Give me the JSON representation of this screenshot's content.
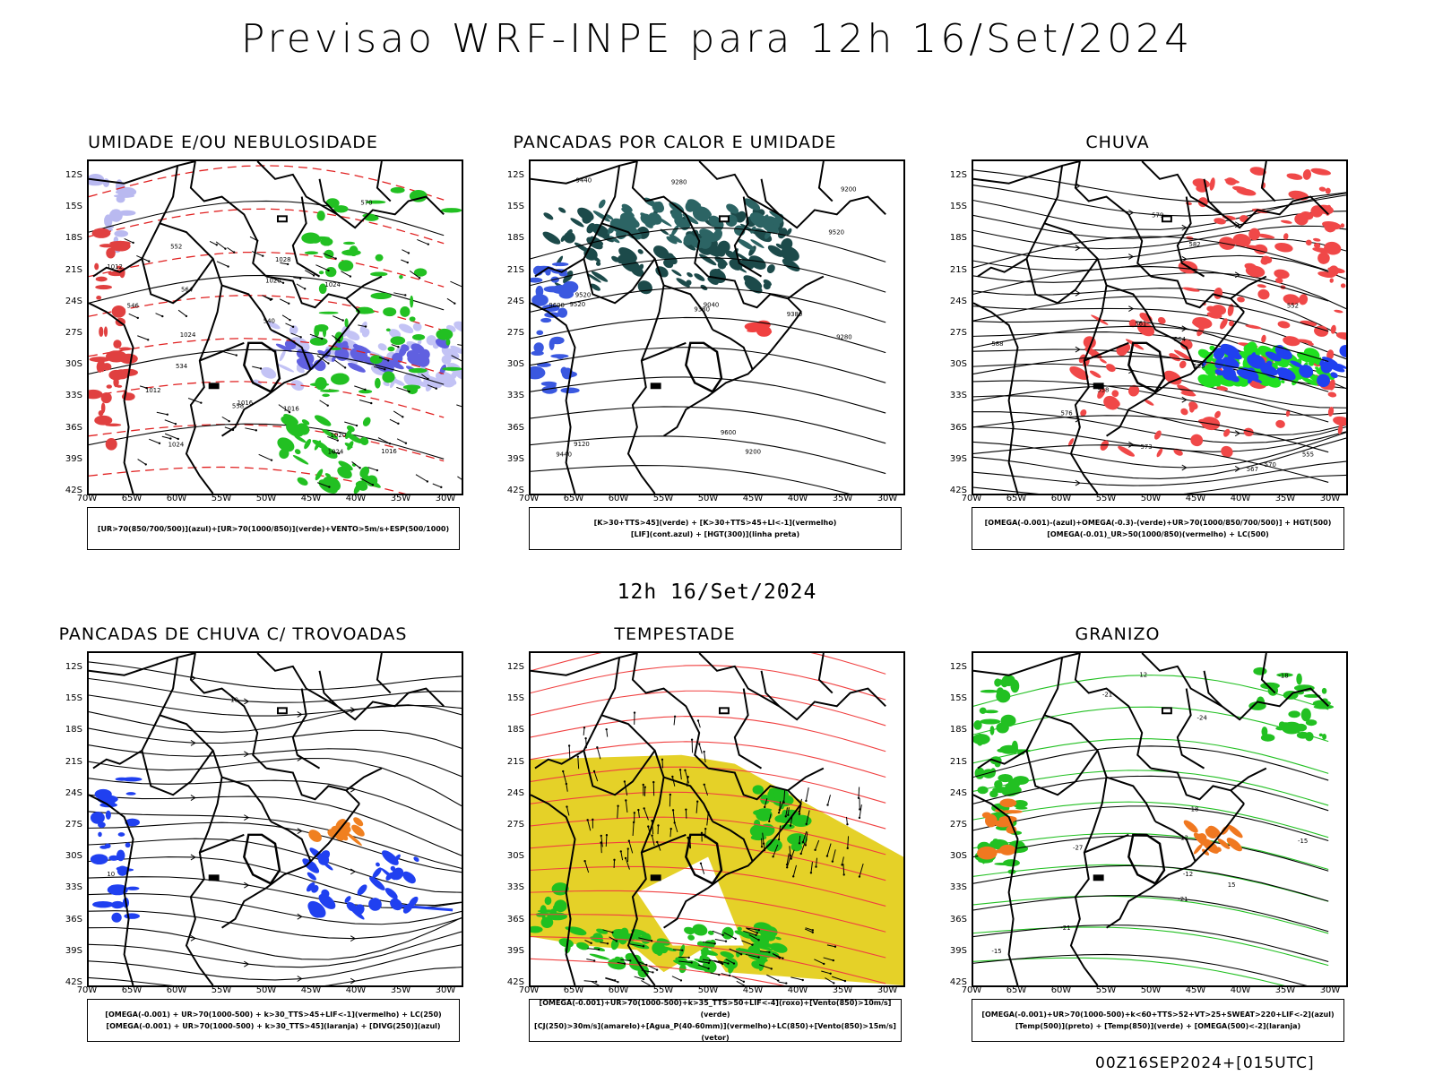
{
  "title": "Previsao WRF-INPE  para 12h 16/Set/2024",
  "subtitle": "12h 16/Set/2024",
  "footer": "00Z16SEP2024+[015UTC]",
  "axes": {
    "lat_ticks": [
      "12S",
      "15S",
      "18S",
      "21S",
      "24S",
      "27S",
      "30S",
      "33S",
      "36S",
      "39S",
      "42S"
    ],
    "lon_ticks": [
      "70W",
      "65W",
      "60W",
      "55W",
      "50W",
      "45W",
      "40W",
      "35W",
      "30W"
    ]
  },
  "panels": [
    {
      "title": "UMIDADE E/OU NEBULOSIDADE",
      "legend": [
        "[UR>70(850/700/500)](azul)+[UR>70(1000/850)](verde)+VENTO>5m/s+ESP(500/1000)"
      ],
      "contour_labels": [
        "1012",
        "1012",
        "1016",
        "1016",
        "1016",
        "1020",
        "1024",
        "1024",
        "1024",
        "1024",
        "1020",
        "570",
        "564",
        "558",
        "552",
        "546",
        "540",
        "534",
        "1028"
      ]
    },
    {
      "title": "PANCADAS POR CALOR E UMIDADE",
      "legend": [
        "[K>30+TTS>45](verde) + [K>30+TTS>45+LI<-1](vermelho)",
        "[LIF](cont.azul) + [HGT(300)](linha preta)"
      ],
      "contour_labels": [
        "9600",
        "9520",
        "9440",
        "9380",
        "9600",
        "9520",
        "9440",
        "9380",
        "9280",
        "9520",
        "9200",
        "9280",
        "9120",
        "9040",
        "9200"
      ]
    },
    {
      "title": "CHUVA",
      "legend": [
        "[OMEGA(-0.001)-(azul)+OMEGA(-0.3)-(verde)+UR>70(1000/850/700/500)] + HGT(500)",
        "[OMEGA(-0.01)_UR>50(1000/850)(vermelho) + LC(500)"
      ],
      "contour_labels": [
        "588",
        "585",
        "582",
        "579",
        "576",
        "573",
        "570",
        "567",
        "564",
        "561",
        "558",
        "555",
        "552"
      ]
    },
    {
      "title": "PANCADAS DE CHUVA C/ TROVOADAS",
      "legend": [
        "[OMEGA(-0.001) + UR>70(1000-500) + k>30_TTS>45+LIF<-1](vermelho) + LC(250)",
        "[OMEGA(-0.001) + UR>70(1000-500) + k>30_TTS>45](laranja) + [DIVG(250)](azul)"
      ],
      "contour_labels": [
        "10",
        "10"
      ]
    },
    {
      "title": "TEMPESTADE",
      "legend": [
        "[OMEGA(-0.001)+UR>70(1000-500)+k>35_TTS>50+LIF<-4](roxo)+[Vento(850)>10m/s](verde)",
        "[CJ(250)>30m/s](amarelo)+[Agua_P(40-60mm)](vermelho)+LC(850)+[Vento(850)>15m/s](vetor)"
      ],
      "contour_labels": []
    },
    {
      "title": "GRANIZO",
      "legend": [
        "[OMEGA(-0.001)+UR>70(1000-500)+k<60+TTS>52+VT>25+SWEAT>220+LIF<-2](azul)",
        "[Temp(500)](preto) + [Temp(850)](verde) + [OMEGA(500)<-2](laranja)"
      ],
      "contour_labels": [
        "-15",
        "-18",
        "-21",
        "-24",
        "-27",
        "-18",
        "-21",
        "-15",
        "-12",
        "-12",
        "-21",
        "15",
        "12"
      ]
    }
  ]
}
